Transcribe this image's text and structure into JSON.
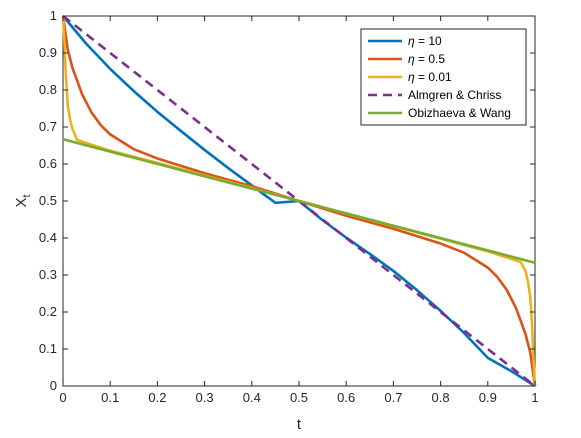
{
  "chart_data": {
    "type": "line",
    "xlabel": "t",
    "ylabel": "X",
    "ylabel_subscript": "t",
    "xlim": [
      0,
      1
    ],
    "ylim": [
      0,
      1
    ],
    "xticks": [
      0,
      0.1,
      0.2,
      0.3,
      0.4,
      0.5,
      0.6,
      0.7,
      0.8,
      0.9,
      1
    ],
    "xtick_labels": [
      "0",
      "0.1",
      "0.2",
      "0.3",
      "0.4",
      "0.5",
      "0.6",
      "0.7",
      "0.8",
      "0.9",
      "1"
    ],
    "yticks": [
      0,
      0.1,
      0.2,
      0.3,
      0.4,
      0.5,
      0.6,
      0.7,
      0.8,
      0.9,
      1
    ],
    "ytick_labels": [
      "0",
      "0.1",
      "0.2",
      "0.3",
      "0.4",
      "0.5",
      "0.6",
      "0.7",
      "0.8",
      "0.9",
      "1"
    ],
    "grid": false,
    "legend_position": "top-right",
    "series": [
      {
        "name": "η = 10",
        "legend_symbol": "η",
        "legend_value": " = 10",
        "color": "#0072BD",
        "dash": "solid",
        "x": [
          0,
          0.05,
          0.1,
          0.15,
          0.2,
          0.25,
          0.3,
          0.35,
          0.4,
          0.45,
          0.5,
          0.55,
          0.6,
          0.65,
          0.7,
          0.75,
          0.8,
          0.85,
          0.9,
          0.95,
          1
        ],
        "y": [
          1,
          0.924,
          0.857,
          0.797,
          0.741,
          0.689,
          0.638,
          0.589,
          0.542,
          0.495,
          0.5,
          0.448,
          0.401,
          0.357,
          0.311,
          0.259,
          0.203,
          0.143,
          0.076,
          0.04,
          0
        ]
      },
      {
        "name": "η = 0.5",
        "legend_symbol": "η",
        "legend_value": " = 0.5",
        "color": "#D95319",
        "dash": "solid",
        "x": [
          0,
          0.01,
          0.02,
          0.04,
          0.06,
          0.08,
          0.1,
          0.15,
          0.2,
          0.3,
          0.4,
          0.5,
          0.6,
          0.7,
          0.8,
          0.85,
          0.9,
          0.92,
          0.94,
          0.96,
          0.98,
          0.99,
          1
        ],
        "y": [
          1,
          0.91,
          0.86,
          0.79,
          0.74,
          0.705,
          0.68,
          0.64,
          0.615,
          0.575,
          0.54,
          0.5,
          0.46,
          0.425,
          0.385,
          0.36,
          0.32,
          0.295,
          0.26,
          0.21,
          0.14,
          0.09,
          0
        ]
      },
      {
        "name": "η = 0.01",
        "legend_symbol": "η",
        "legend_value": " = 0.01",
        "color": "#EDB120",
        "dash": "solid",
        "x": [
          0,
          0.003,
          0.006,
          0.01,
          0.015,
          0.02,
          0.03,
          0.1,
          0.2,
          0.3,
          0.4,
          0.5,
          0.6,
          0.7,
          0.8,
          0.9,
          0.97,
          0.98,
          0.985,
          0.99,
          0.994,
          0.997,
          1
        ],
        "y": [
          1,
          0.93,
          0.84,
          0.76,
          0.72,
          0.695,
          0.665,
          0.636,
          0.603,
          0.569,
          0.535,
          0.5,
          0.466,
          0.432,
          0.398,
          0.364,
          0.335,
          0.31,
          0.283,
          0.24,
          0.16,
          0.07,
          0
        ]
      },
      {
        "name": "Almgren & Chriss",
        "color": "#7E2F8E",
        "dash": "dashed",
        "x": [
          0,
          1
        ],
        "y": [
          1,
          0
        ]
      },
      {
        "name": "Obizhaeva & Wang",
        "color": "#77AC30",
        "dash": "solid",
        "x": [
          0,
          1
        ],
        "y": [
          0.667,
          0.333
        ]
      }
    ]
  }
}
